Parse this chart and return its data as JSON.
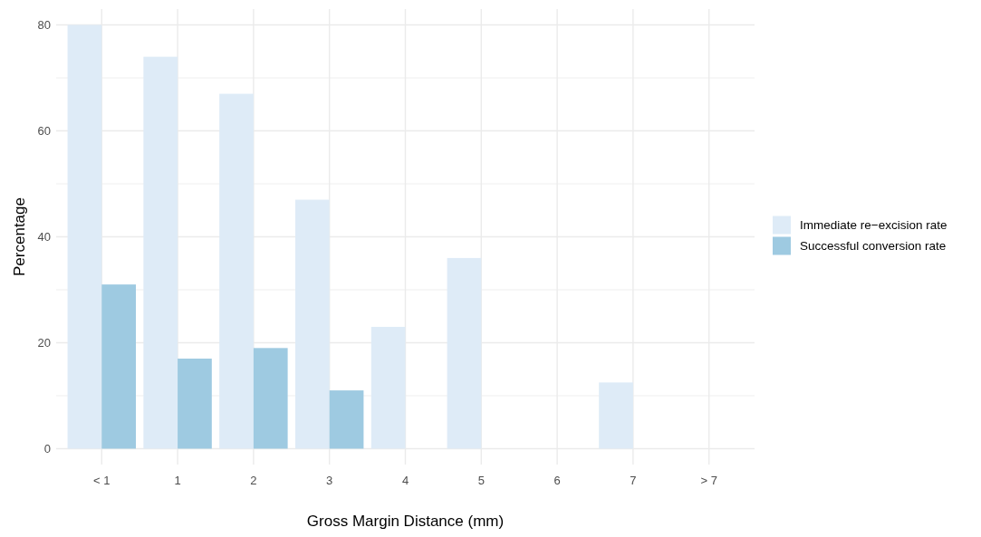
{
  "chart_data": {
    "type": "bar",
    "xlabel": "Gross Margin Distance (mm)",
    "ylabel": "Percentage",
    "categories": [
      "< 1",
      "1",
      "2",
      "3",
      "4",
      "5",
      "6",
      "7",
      "> 7"
    ],
    "series": [
      {
        "name": "Immediate re−excision rate",
        "color": "#deebf7",
        "values": [
          80,
          74,
          67,
          47,
          23,
          36,
          null,
          12.5,
          null
        ]
      },
      {
        "name": "Successful conversion rate",
        "color": "#9ecae1",
        "values": [
          31,
          17,
          19,
          11,
          null,
          null,
          null,
          null,
          null
        ]
      }
    ],
    "ylim": [
      -3,
      83
    ],
    "yticks": [
      0,
      {
        "value": 10,
        "label": null
      },
      20,
      {
        "value": 30,
        "label": null
      },
      40,
      {
        "value": 50,
        "label": null
      },
      60,
      {
        "value": 70,
        "label": null
      },
      80
    ],
    "grid": true,
    "legend": "right"
  }
}
